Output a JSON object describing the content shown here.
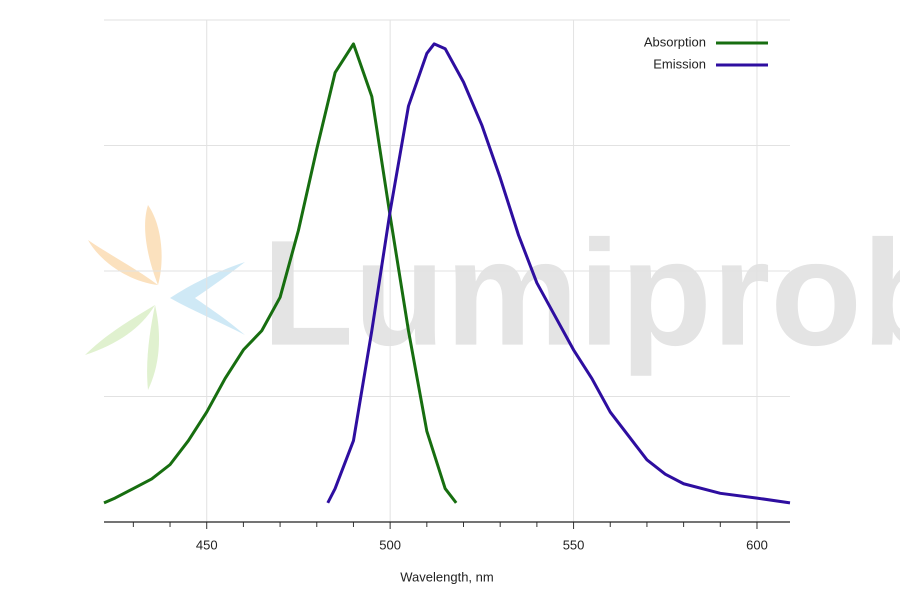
{
  "chart_data": {
    "type": "line",
    "watermark": "Lumiprobe",
    "x_label": "Wavelength, nm",
    "xlim": [
      422,
      609
    ],
    "xticks": [
      450,
      500,
      550,
      600
    ],
    "xminorticks": [
      430,
      440,
      460,
      470,
      480,
      490,
      510,
      520,
      530,
      540,
      560,
      570,
      580,
      590
    ],
    "ylim": [
      0,
      1.05
    ],
    "yticks": [
      0,
      0.2625,
      0.525,
      0.7875,
      1.05
    ],
    "y_tick_labels": false,
    "grid": true,
    "legend": "upper right",
    "series": [
      {
        "name": "Absorption",
        "color": "#176e10",
        "x": [
          422,
          425,
          430,
          435,
          440,
          445,
          450,
          455,
          460,
          465,
          470,
          475,
          480,
          485,
          490,
          495,
          500,
          505,
          510,
          515,
          518
        ],
        "values": [
          0.04,
          0.05,
          0.07,
          0.09,
          0.12,
          0.17,
          0.23,
          0.3,
          0.36,
          0.4,
          0.47,
          0.61,
          0.78,
          0.94,
          1.0,
          0.89,
          0.64,
          0.4,
          0.19,
          0.07,
          0.04
        ]
      },
      {
        "name": "Emission",
        "color": "#2e0ea0",
        "x": [
          483,
          485,
          490,
          495,
          500,
          505,
          510,
          512,
          515,
          520,
          525,
          530,
          535,
          540,
          545,
          550,
          555,
          560,
          565,
          570,
          575,
          580,
          590,
          600,
          609
        ],
        "values": [
          0.04,
          0.07,
          0.17,
          0.4,
          0.65,
          0.87,
          0.98,
          1.0,
          0.99,
          0.92,
          0.83,
          0.72,
          0.6,
          0.5,
          0.43,
          0.36,
          0.3,
          0.23,
          0.18,
          0.13,
          0.1,
          0.08,
          0.06,
          0.05,
          0.04
        ]
      }
    ]
  }
}
